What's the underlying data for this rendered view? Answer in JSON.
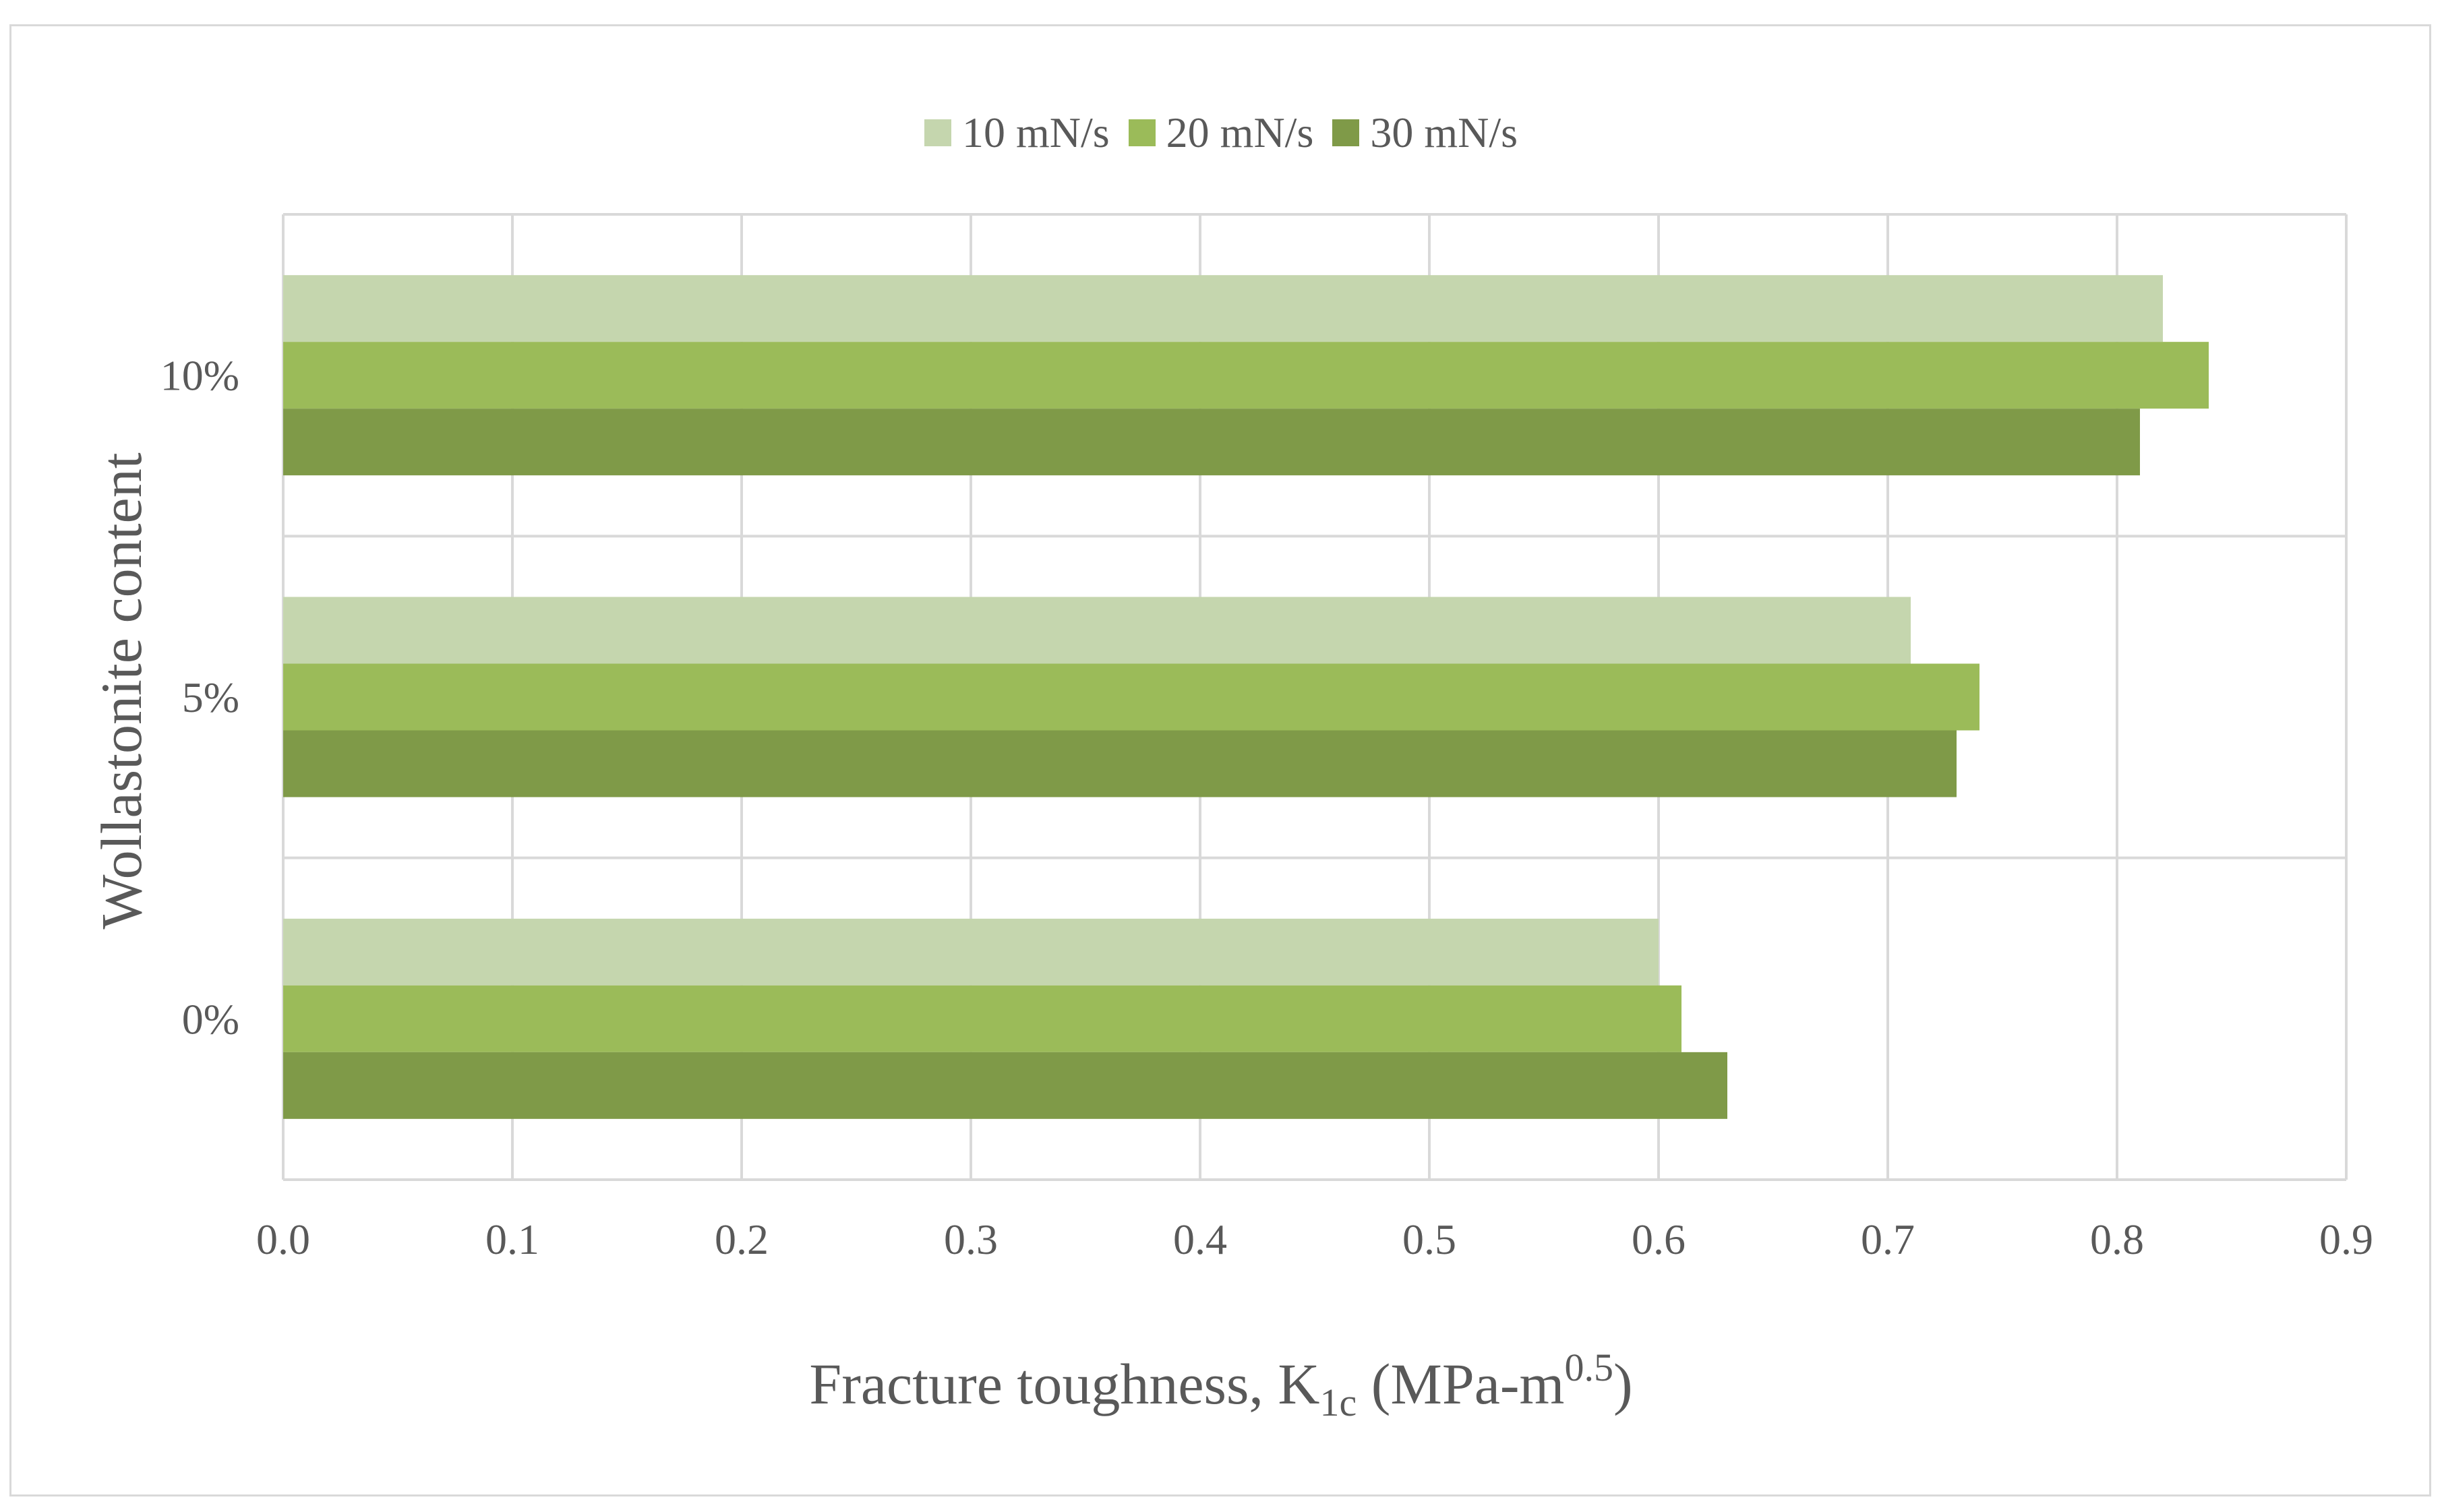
{
  "chart_data": {
    "type": "bar",
    "orientation": "horizontal",
    "categories": [
      "0%",
      "5%",
      "10%"
    ],
    "series": [
      {
        "name": "10 mN/s",
        "color": "#c5d6ae",
        "values": [
          0.6,
          0.71,
          0.82
        ]
      },
      {
        "name": "20 mN/s",
        "color": "#9bbb59",
        "values": [
          0.61,
          0.74,
          0.84
        ]
      },
      {
        "name": "30 mN/s",
        "color": "#7f9a48",
        "values": [
          0.63,
          0.73,
          0.81
        ]
      }
    ],
    "xlim": [
      0.0,
      0.9
    ],
    "xticks": [
      "0.0",
      "0.1",
      "0.2",
      "0.3",
      "0.4",
      "0.5",
      "0.6",
      "0.7",
      "0.8",
      "0.9"
    ],
    "ylabel": "Wollastonite content",
    "xlabel": {
      "prefix": "Fracture toughness, K",
      "sub": "1c",
      "middle": " (MPa-m",
      "sup": "0.5",
      "suffix": ")"
    },
    "grid": true,
    "legend_position": "top"
  }
}
